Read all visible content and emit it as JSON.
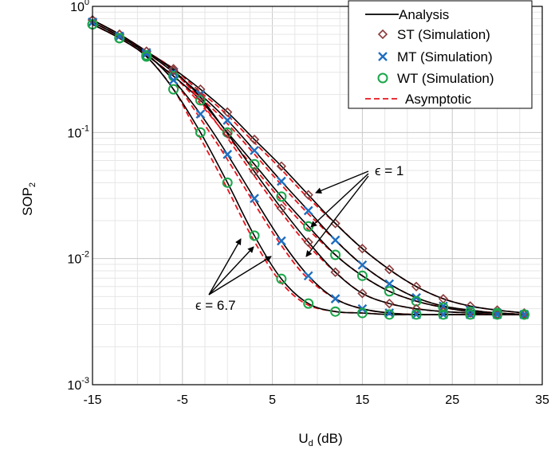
{
  "chart_data": {
    "type": "line",
    "xlabel": "U",
    "xlabel_sub": "d",
    "xlabel_unit": " (dB)",
    "ylabel": "SOP",
    "ylabel_sub": "2",
    "xlim": [
      -15,
      35
    ],
    "ylim": [
      0.001,
      1
    ],
    "yscale": "log",
    "grid": true,
    "x_ticks": [
      "-15",
      "-5",
      "5",
      "15",
      "25",
      "35"
    ],
    "y_ticks": [
      {
        "base": "10",
        "exp": "-3"
      },
      {
        "base": "10",
        "exp": "-2"
      },
      {
        "base": "10",
        "exp": "-1"
      },
      {
        "base": "10",
        "exp": "0"
      }
    ],
    "legend": {
      "position": "top-right",
      "entries": [
        "Analysis",
        "ST (Simulation)",
        "MT (Simulation)",
        "WT (Simulation)",
        "Asymptotic"
      ]
    },
    "colors": {
      "analysis": "#000000",
      "st": "#8b3a3a",
      "mt": "#1f6fbf",
      "wt": "#1aa64a",
      "asymptotic": "#e8141c"
    },
    "annotations": [
      "ϵ = 1",
      "ϵ = 6.7"
    ],
    "sim_x": [
      -15,
      -12,
      -9,
      -6,
      -3,
      0,
      3,
      6,
      9,
      12,
      15,
      18,
      21,
      24,
      27,
      30,
      33
    ],
    "series": [
      {
        "name": "ST (Simulation)",
        "group": "ϵ = 1",
        "marker": "diamond",
        "values": [
          0.78,
          0.6,
          0.44,
          0.32,
          0.22,
          0.145,
          0.088,
          0.054,
          0.032,
          0.019,
          0.012,
          0.0082,
          0.006,
          0.0048,
          0.0042,
          0.0039,
          0.0037
        ]
      },
      {
        "name": "MT (Simulation)",
        "group": "ϵ = 1",
        "marker": "x",
        "values": [
          0.75,
          0.58,
          0.43,
          0.3,
          0.2,
          0.125,
          0.072,
          0.041,
          0.024,
          0.014,
          0.0089,
          0.0063,
          0.0049,
          0.0042,
          0.0039,
          0.0037,
          0.0036
        ]
      },
      {
        "name": "WT (Simulation)",
        "group": "ϵ = 1",
        "marker": "circle",
        "values": [
          0.72,
          0.56,
          0.41,
          0.28,
          0.18,
          0.1,
          0.056,
          0.031,
          0.018,
          0.0107,
          0.0073,
          0.0055,
          0.0046,
          0.0041,
          0.0038,
          0.0037,
          0.0036
        ]
      },
      {
        "name": "ST (Simulation)",
        "group": "ϵ = 6.7",
        "marker": "diamond",
        "values": [
          0.78,
          0.6,
          0.44,
          0.31,
          0.19,
          0.098,
          0.049,
          0.025,
          0.0135,
          0.0078,
          0.0053,
          0.0044,
          0.004,
          0.0038,
          0.0037,
          0.0036,
          0.0036
        ]
      },
      {
        "name": "MT (Simulation)",
        "group": "ϵ = 6.7",
        "marker": "x",
        "values": [
          0.75,
          0.58,
          0.42,
          0.26,
          0.14,
          0.067,
          0.03,
          0.0138,
          0.0073,
          0.0048,
          0.004,
          0.0037,
          0.0036,
          0.0036,
          0.0036,
          0.0036,
          0.0036
        ]
      },
      {
        "name": "WT (Simulation)",
        "group": "ϵ = 6.7",
        "marker": "circle",
        "values": [
          0.72,
          0.56,
          0.4,
          0.22,
          0.1,
          0.04,
          0.0152,
          0.0069,
          0.0044,
          0.0038,
          0.0037,
          0.0036,
          0.0036,
          0.0036,
          0.0036,
          0.0036,
          0.0036
        ]
      }
    ]
  }
}
